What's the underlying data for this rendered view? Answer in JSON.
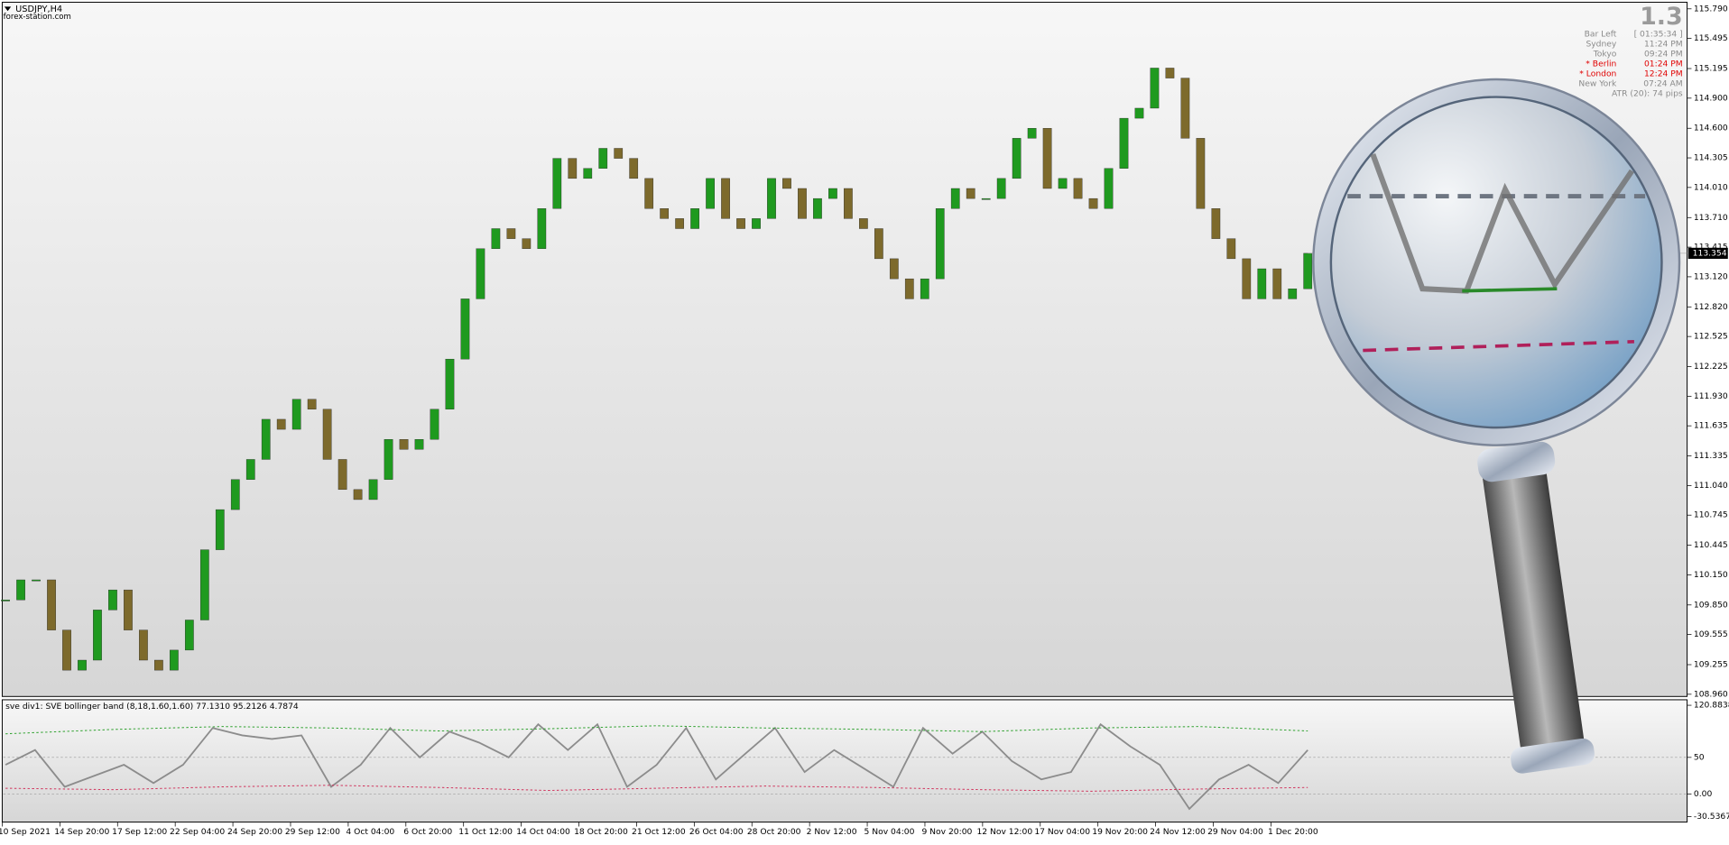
{
  "chart_data": [
    {
      "type": "candlestick",
      "title": "USDJPY,H4",
      "subtitle": "forex-station.com",
      "closes": [
        109.9,
        110.1,
        110.1,
        109.6,
        109.2,
        109.3,
        109.8,
        110.0,
        109.6,
        109.3,
        109.2,
        109.4,
        109.7,
        110.4,
        110.8,
        111.1,
        111.3,
        111.7,
        111.6,
        111.9,
        111.8,
        111.3,
        111.0,
        110.9,
        111.1,
        111.5,
        111.4,
        111.5,
        111.8,
        112.3,
        112.9,
        113.4,
        113.6,
        113.5,
        113.4,
        113.8,
        114.3,
        114.1,
        114.2,
        114.4,
        114.3,
        114.1,
        113.8,
        113.7,
        113.6,
        113.8,
        114.1,
        113.7,
        113.6,
        113.7,
        114.1,
        114.0,
        113.7,
        113.9,
        114.0,
        113.7,
        113.6,
        113.3,
        113.1,
        112.9,
        113.1,
        113.8,
        114.0,
        113.9,
        113.9,
        114.1,
        114.5,
        114.6,
        114.0,
        114.1,
        113.9,
        113.8,
        114.2,
        114.7,
        114.8,
        115.2,
        115.1,
        114.5,
        113.8,
        113.5,
        113.3,
        112.9,
        113.2,
        112.9,
        113.0,
        113.354
      ],
      "up_color": "#1f9a1f",
      "down_color": "#7d6a2c",
      "last_price": 113.354,
      "ylim": [
        108.96,
        115.79
      ],
      "yticks": [
        {
          "value": 115.79,
          "label": "115.790"
        },
        115.495,
        115.195,
        {
          "value": 114.9,
          "label": "114.900"
        },
        {
          "value": 114.6,
          "label": "114.600"
        },
        114.305,
        {
          "value": 114.01,
          "label": "114.010"
        },
        {
          "value": 113.71,
          "label": "113.710"
        },
        113.415,
        {
          "value": 113.12,
          "label": "113.120"
        },
        {
          "value": 112.82,
          "label": "112.820"
        },
        112.525,
        112.225,
        {
          "value": 111.93,
          "label": "111.930"
        },
        111.635,
        111.335,
        {
          "value": 111.04,
          "label": "111.040"
        },
        110.745,
        110.445,
        {
          "value": 110.15,
          "label": "110.150"
        },
        {
          "value": 109.85,
          "label": "109.850"
        },
        109.555,
        109.255,
        {
          "value": 108.96,
          "label": "108.960"
        }
      ]
    },
    {
      "type": "line",
      "title": "sve div1: SVE bollinger band (8,18,1.60,1.60) 77.1310 95.2126 4.7874",
      "series": [
        {
          "color": "#8c8c8c",
          "values": [
            40,
            60,
            10,
            25,
            40,
            15,
            40,
            90,
            80,
            75,
            80,
            10,
            40,
            90,
            50,
            85,
            70,
            50,
            95,
            60,
            95,
            10,
            40,
            90,
            20,
            55,
            90,
            30,
            60,
            35,
            10,
            90,
            55,
            85,
            45,
            20,
            30,
            95,
            65,
            40,
            -20,
            20,
            40,
            15,
            60
          ]
        },
        {
          "color": "#2ca02c",
          "dashed": true,
          "values": [
            82,
            88,
            92,
            90,
            86,
            89,
            93,
            90,
            88,
            85,
            90,
            92,
            86
          ]
        },
        {
          "color": "#d0305a",
          "dashed": true,
          "values": [
            8,
            6,
            10,
            12,
            9,
            5,
            8,
            11,
            9,
            6,
            4,
            7,
            9
          ]
        }
      ],
      "ylim": [
        -30.5367,
        120.8838
      ],
      "yticks": [
        120.8838,
        50,
        {
          "value": 0,
          "label": "0.00"
        },
        -30.5367
      ]
    }
  ],
  "x_axis_labels": [
    "10 Sep 2021",
    "14 Sep 20:00",
    "17 Sep 12:00",
    "22 Sep 04:00",
    "24 Sep 20:00",
    "29 Sep 12:00",
    "4 Oct 04:00",
    "6 Oct 20:00",
    "11 Oct 12:00",
    "14 Oct 04:00",
    "18 Oct 20:00",
    "21 Oct 12:00",
    "26 Oct 04:00",
    "28 Oct 20:00",
    "2 Nov 12:00",
    "5 Nov 04:00",
    "9 Nov 20:00",
    "12 Nov 12:00",
    "17 Nov 04:00",
    "19 Nov 20:00",
    "24 Nov 12:00",
    "29 Nov 04:00",
    "1 Dec 20:00"
  ],
  "info_panel": {
    "big": "1.3",
    "rows": [
      [
        "Bar Left",
        "[ 01:35:34 ]"
      ],
      [
        "Sydney",
        "11:24 PM"
      ],
      [
        "Tokyo",
        "09:24 PM"
      ],
      [
        "* Berlin",
        "01:24 PM"
      ],
      [
        "* London",
        "12:24 PM"
      ],
      [
        "New York",
        "07:24 AM"
      ]
    ],
    "highlight_color": "#e00000",
    "highlight_rows": [
      3,
      4
    ],
    "atr": "ATR (20): 74 pips"
  }
}
